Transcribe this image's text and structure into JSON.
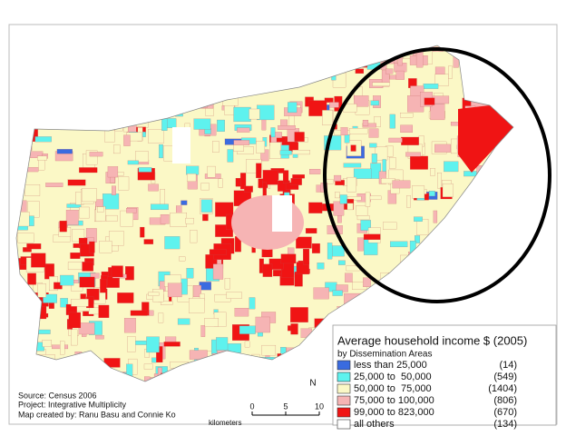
{
  "legend": {
    "title": "Average household income $ (2005)",
    "subtitle": "by Dissemination Areas",
    "items": [
      {
        "label": "less than 25,000",
        "count": "(14)",
        "color": "#3a6be0"
      },
      {
        "label": "25,000 to  50,000",
        "count": "(549)",
        "color": "#5ef2ee"
      },
      {
        "label": "50,000 to  75,000",
        "count": "(1404)",
        "color": "#fbf8c6"
      },
      {
        "label": "75,000 to 100,000",
        "count": "(806)",
        "color": "#f6b4b4"
      },
      {
        "label": "99,000 to 823,000",
        "count": "(670)",
        "color": "#f01414"
      },
      {
        "label": "all others",
        "count": "(134)",
        "color": "#ffffff"
      }
    ]
  },
  "notes": [
    "Source: Census 2006",
    "Project: Integrative Multiplicity",
    "Map created by: Ranu Basu and Connie Ko"
  ],
  "scale": {
    "unit": "kilometers",
    "ticks": [
      0,
      5,
      10
    ]
  },
  "north": "N"
}
